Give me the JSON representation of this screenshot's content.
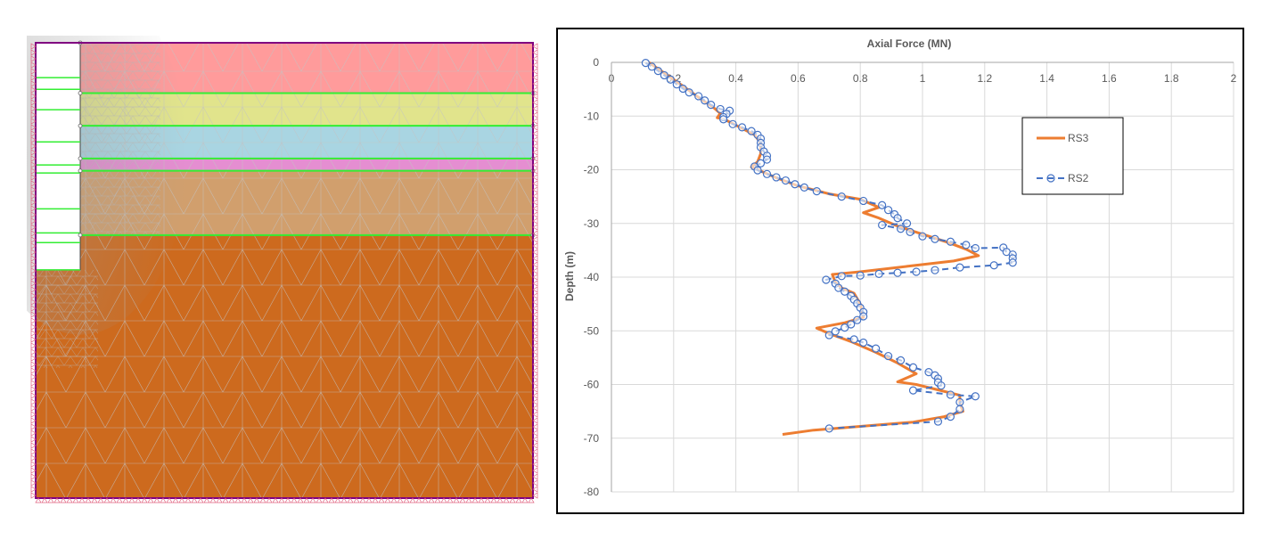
{
  "mesh_model": {
    "layer_colors": [
      "#ff9b9b",
      "#e1e48c",
      "#a9d5e2",
      "#e58ed1",
      "#d19f6d",
      "#cd6a1e"
    ],
    "layer_bottom_depths_m": [
      9.4,
      15.5,
      21.6,
      23.9,
      35.9
    ],
    "model_bottom_depth_m": 85,
    "pile_bottom_depth_m": 42.4,
    "pile_divisions_depth_m": [
      6.5,
      8.7,
      12.5,
      18.5,
      22.8,
      24.3,
      31.0,
      35.5,
      37.3
    ],
    "interface_color": "#33ee33",
    "mesh_line_color": "#b5b5b5",
    "boundary_color": "#800080",
    "support_color": "#e0607e"
  },
  "chart_data": {
    "type": "line",
    "title": "Axial Force (MN)",
    "xlabel": "",
    "ylabel": "Depth (m)",
    "xlim": [
      0,
      2
    ],
    "ylim": [
      -80,
      0
    ],
    "x_ticks": [
      "0",
      "0.2",
      "0.4",
      "0.6",
      "0.8",
      "1",
      "1.2",
      "1.4",
      "1.6",
      "1.8",
      "2"
    ],
    "y_ticks": [
      "0",
      "-10",
      "-20",
      "-30",
      "-40",
      "-50",
      "-60",
      "-70",
      "-80"
    ],
    "x_tick_values": [
      0,
      0.2,
      0.4,
      0.6,
      0.8,
      1.0,
      1.2,
      1.4,
      1.6,
      1.8,
      2.0
    ],
    "y_tick_values": [
      0,
      -10,
      -20,
      -30,
      -40,
      -50,
      -60,
      -70,
      -80
    ],
    "grid": true,
    "legend_position": "right",
    "series": [
      {
        "name": "RS3",
        "color": "#ed7d31",
        "style": "solid",
        "points": [
          [
            0.12,
            0
          ],
          [
            0.17,
            -2
          ],
          [
            0.22,
            -4
          ],
          [
            0.28,
            -6.5
          ],
          [
            0.33,
            -8.5
          ],
          [
            0.35,
            -9.5
          ],
          [
            0.34,
            -10.3
          ],
          [
            0.36,
            -10.5
          ],
          [
            0.41,
            -12
          ],
          [
            0.46,
            -13.5
          ],
          [
            0.48,
            -15
          ],
          [
            0.48,
            -17
          ],
          [
            0.47,
            -18.5
          ],
          [
            0.45,
            -19.5
          ],
          [
            0.47,
            -20
          ],
          [
            0.53,
            -21.5
          ],
          [
            0.6,
            -23
          ],
          [
            0.7,
            -24.5
          ],
          [
            0.8,
            -25.5
          ],
          [
            0.86,
            -27
          ],
          [
            0.81,
            -28
          ],
          [
            0.86,
            -29
          ],
          [
            0.92,
            -30.5
          ],
          [
            1.0,
            -32
          ],
          [
            1.08,
            -33.5
          ],
          [
            1.14,
            -34.8
          ],
          [
            1.18,
            -36
          ],
          [
            1.1,
            -37
          ],
          [
            0.95,
            -38
          ],
          [
            0.8,
            -39
          ],
          [
            0.71,
            -39.5
          ],
          [
            0.72,
            -41
          ],
          [
            0.74,
            -42
          ],
          [
            0.78,
            -43
          ],
          [
            0.8,
            -45
          ],
          [
            0.81,
            -47.5
          ],
          [
            0.75,
            -48.5
          ],
          [
            0.66,
            -49.5
          ],
          [
            0.7,
            -50.5
          ],
          [
            0.77,
            -52
          ],
          [
            0.85,
            -54
          ],
          [
            0.92,
            -56
          ],
          [
            0.98,
            -58
          ],
          [
            0.92,
            -59.5
          ],
          [
            0.98,
            -60
          ],
          [
            1.05,
            -61
          ],
          [
            1.12,
            -62
          ],
          [
            1.12,
            -63.5
          ],
          [
            1.13,
            -65
          ],
          [
            1.07,
            -66
          ],
          [
            0.97,
            -67
          ],
          [
            0.8,
            -67.8
          ],
          [
            0.65,
            -68.5
          ],
          [
            0.55,
            -69.3
          ]
        ]
      },
      {
        "name": "RS2",
        "color": "#4472c4",
        "style": "dashed",
        "marker": "circle",
        "points": [
          [
            0.11,
            -0.1
          ],
          [
            0.13,
            -0.8
          ],
          [
            0.15,
            -1.6
          ],
          [
            0.17,
            -2.4
          ],
          [
            0.19,
            -3.2
          ],
          [
            0.21,
            -4.1
          ],
          [
            0.23,
            -4.9
          ],
          [
            0.25,
            -5.6
          ],
          [
            0.28,
            -6.3
          ],
          [
            0.3,
            -7.1
          ],
          [
            0.32,
            -7.9
          ],
          [
            0.35,
            -8.7
          ],
          [
            0.38,
            -9.0
          ],
          [
            0.37,
            -9.6
          ],
          [
            0.36,
            -10.2
          ],
          [
            0.36,
            -10.6
          ],
          [
            0.39,
            -11.5
          ],
          [
            0.42,
            -12.1
          ],
          [
            0.45,
            -12.8
          ],
          [
            0.47,
            -13.5
          ],
          [
            0.48,
            -14.2
          ],
          [
            0.48,
            -15.0
          ],
          [
            0.48,
            -15.8
          ],
          [
            0.49,
            -16.6
          ],
          [
            0.5,
            -17.4
          ],
          [
            0.5,
            -18.1
          ],
          [
            0.48,
            -18.8
          ],
          [
            0.46,
            -19.4
          ],
          [
            0.47,
            -20.1
          ],
          [
            0.5,
            -20.8
          ],
          [
            0.53,
            -21.4
          ],
          [
            0.56,
            -22.0
          ],
          [
            0.59,
            -22.7
          ],
          [
            0.62,
            -23.3
          ],
          [
            0.66,
            -24.0
          ],
          [
            0.74,
            -25.0
          ],
          [
            0.81,
            -25.8
          ],
          [
            0.87,
            -26.6
          ],
          [
            0.89,
            -27.5
          ],
          [
            0.91,
            -28.3
          ],
          [
            0.92,
            -29.0
          ],
          [
            0.95,
            -30.0
          ],
          [
            0.87,
            -30.3
          ],
          [
            0.93,
            -31.0
          ],
          [
            0.96,
            -31.6
          ],
          [
            1.0,
            -32.4
          ],
          [
            1.04,
            -32.9
          ],
          [
            1.09,
            -33.4
          ],
          [
            1.14,
            -34.0
          ],
          [
            1.17,
            -34.6
          ],
          [
            1.26,
            -34.5
          ],
          [
            1.27,
            -35.3
          ],
          [
            1.29,
            -35.8
          ],
          [
            1.29,
            -36.5
          ],
          [
            1.29,
            -37.3
          ],
          [
            1.23,
            -37.8
          ],
          [
            1.12,
            -38.2
          ],
          [
            1.04,
            -38.7
          ],
          [
            0.98,
            -39.0
          ],
          [
            0.92,
            -39.2
          ],
          [
            0.86,
            -39.4
          ],
          [
            0.8,
            -39.7
          ],
          [
            0.74,
            -39.8
          ],
          [
            0.69,
            -40.5
          ],
          [
            0.72,
            -41.2
          ],
          [
            0.73,
            -42.0
          ],
          [
            0.75,
            -42.7
          ],
          [
            0.77,
            -43.5
          ],
          [
            0.78,
            -44.2
          ],
          [
            0.79,
            -44.9
          ],
          [
            0.8,
            -45.7
          ],
          [
            0.81,
            -46.5
          ],
          [
            0.81,
            -47.3
          ],
          [
            0.79,
            -48.0
          ],
          [
            0.77,
            -48.8
          ],
          [
            0.75,
            -49.4
          ],
          [
            0.72,
            -50.1
          ],
          [
            0.7,
            -50.8
          ],
          [
            0.78,
            -51.6
          ],
          [
            0.81,
            -52.2
          ],
          [
            0.85,
            -53.3
          ],
          [
            0.89,
            -54.7
          ],
          [
            0.93,
            -55.5
          ],
          [
            0.97,
            -56.8
          ],
          [
            1.02,
            -57.7
          ],
          [
            1.04,
            -58.3
          ],
          [
            1.05,
            -58.9
          ],
          [
            1.05,
            -59.6
          ],
          [
            1.06,
            -60.2
          ],
          [
            0.97,
            -61.1
          ],
          [
            1.09,
            -61.9
          ],
          [
            1.17,
            -62.2
          ],
          [
            1.12,
            -63.3
          ],
          [
            1.12,
            -64.6
          ],
          [
            1.09,
            -66.0
          ],
          [
            1.05,
            -66.9
          ],
          [
            0.7,
            -68.2
          ]
        ]
      }
    ]
  }
}
